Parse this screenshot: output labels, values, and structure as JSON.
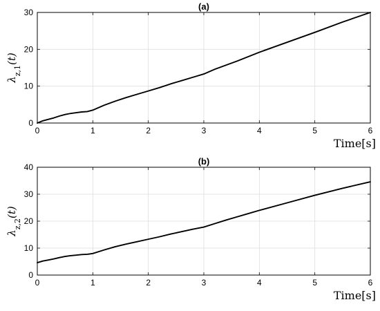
{
  "chart_data": [
    {
      "type": "line",
      "title": "(a)",
      "xlabel": "Time[s]",
      "ylabel": "λz,1(t)",
      "xlim": [
        0,
        6
      ],
      "ylim": [
        0,
        30
      ],
      "xticks": [
        0,
        1,
        2,
        3,
        4,
        5,
        6
      ],
      "yticks": [
        0,
        10,
        20,
        30
      ],
      "grid": true,
      "series": [
        {
          "color": "#000000",
          "x": [
            0,
            0.1,
            0.2,
            0.3,
            0.4,
            0.5,
            0.6,
            0.7,
            0.8,
            0.9,
            1.0,
            1.2,
            1.4,
            1.6,
            1.8,
            2.0,
            2.2,
            2.4,
            2.6,
            2.8,
            3.0,
            3.2,
            3.4,
            3.6,
            3.8,
            4.0,
            4.5,
            5.0,
            5.5,
            6.0
          ],
          "y": [
            0,
            0.6,
            1.0,
            1.4,
            1.9,
            2.3,
            2.6,
            2.8,
            3.0,
            3.1,
            3.5,
            4.8,
            5.9,
            6.9,
            7.8,
            8.7,
            9.6,
            10.6,
            11.5,
            12.4,
            13.3,
            14.6,
            15.7,
            16.8,
            18.0,
            19.2,
            21.9,
            24.6,
            27.4,
            30.0
          ]
        }
      ]
    },
    {
      "type": "line",
      "title": "(b)",
      "xlabel": "Time[s]",
      "ylabel": "λz,2(t)",
      "xlim": [
        0,
        6
      ],
      "ylim": [
        0,
        40
      ],
      "xticks": [
        0,
        1,
        2,
        3,
        4,
        5,
        6
      ],
      "yticks": [
        0,
        10,
        20,
        30,
        40
      ],
      "grid": true,
      "series": [
        {
          "color": "#000000",
          "x": [
            0,
            0.1,
            0.2,
            0.3,
            0.4,
            0.5,
            0.6,
            0.7,
            0.8,
            0.9,
            1.0,
            1.2,
            1.4,
            1.6,
            1.8,
            2.0,
            2.2,
            2.4,
            2.6,
            2.8,
            3.0,
            3.2,
            3.4,
            3.6,
            3.8,
            4.0,
            4.5,
            5.0,
            5.5,
            6.0
          ],
          "y": [
            4.6,
            5.2,
            5.6,
            6.0,
            6.5,
            6.9,
            7.2,
            7.4,
            7.6,
            7.7,
            8.0,
            9.3,
            10.5,
            11.5,
            12.4,
            13.3,
            14.2,
            15.2,
            16.1,
            17.0,
            17.8,
            19.1,
            20.4,
            21.6,
            22.8,
            24.0,
            26.8,
            29.6,
            32.2,
            34.6
          ]
        }
      ]
    }
  ]
}
